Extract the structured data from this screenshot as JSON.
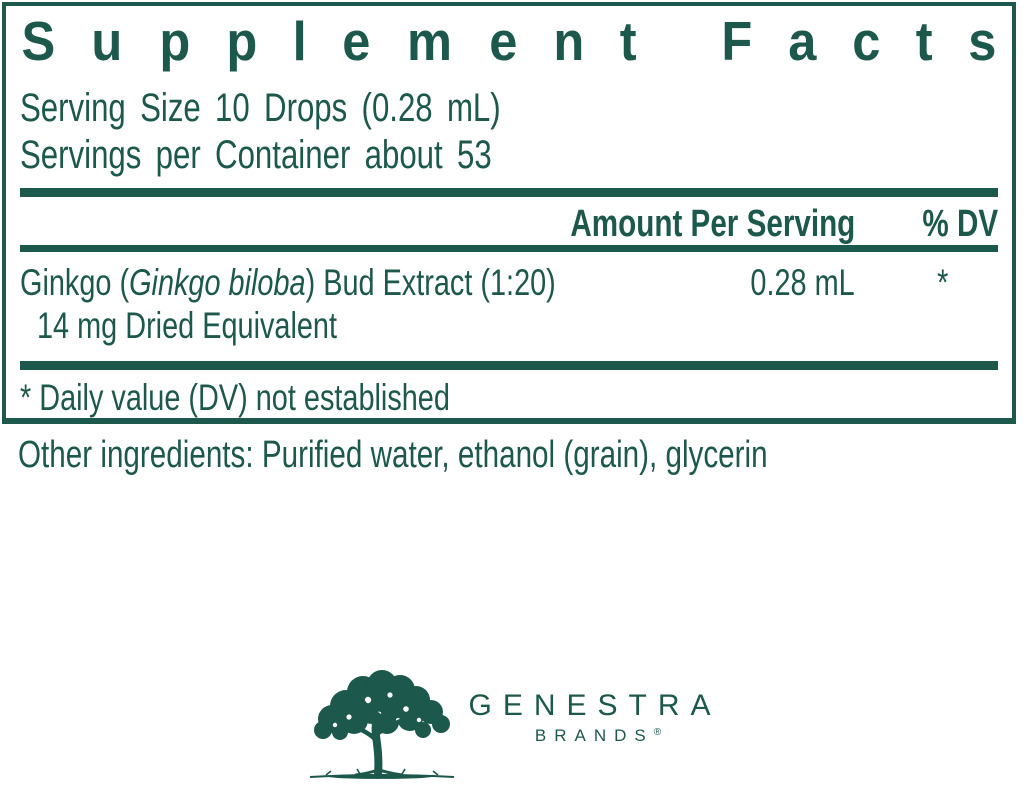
{
  "label": {
    "title": "Supplement Facts",
    "serving_size": "Serving Size 10 Drops (0.28 mL)",
    "servings_per_container": "Servings per Container about 53",
    "columns": {
      "amount": "Amount Per Serving",
      "dv": "% DV"
    },
    "rows": [
      {
        "name_prefix": "Ginkgo (",
        "name_italic": "Ginkgo biloba",
        "name_suffix": ") Bud Extract (1:20)",
        "name_line2": "14 mg Dried Equivalent",
        "amount": "0.28 mL",
        "dv": "*"
      }
    ],
    "footnote": "* Daily value (DV) not established"
  },
  "other_ingredients": "Other ingredients: Purified water, ethanol (grain), glycerin",
  "brand": {
    "name": "GENESTRA",
    "sub": "BRANDS",
    "reg": "®",
    "logo_icon": "tree-icon"
  },
  "colors": {
    "accent": "#1C584B"
  }
}
